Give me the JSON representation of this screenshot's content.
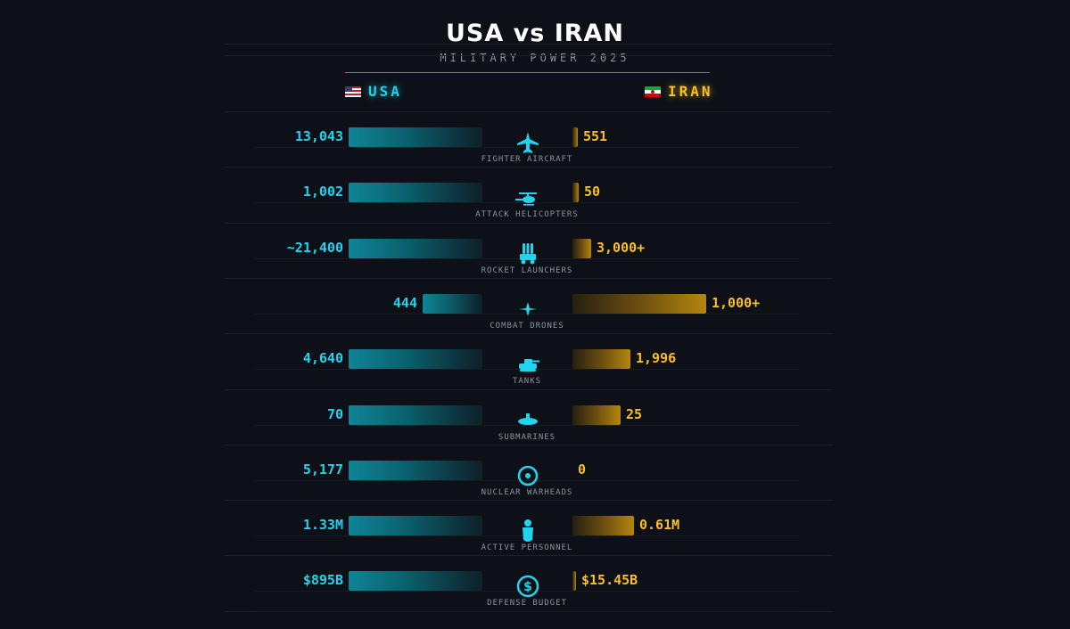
{
  "title": "USA vs IRAN",
  "subtitle": "MILITARY POWER 2025",
  "countries": {
    "usa": {
      "name": "USA",
      "flag": "us-flag-icon",
      "color": "#22d3ee"
    },
    "iran": {
      "name": "IRAN",
      "flag": "iran-flag-icon",
      "color": "#fbbf24"
    }
  },
  "chart_data": {
    "type": "bar",
    "title": "USA vs IRAN",
    "subtitle": "MILITARY POWER 2025",
    "categories": [
      "FIGHTER AIRCRAFT",
      "ATTACK HELICOPTERS",
      "ROCKET LAUNCHERS",
      "COMBAT DRONES",
      "TANKS",
      "SUBMARINES",
      "NUCLEAR WARHEADS",
      "ACTIVE PERSONNEL",
      "DEFENSE BUDGET"
    ],
    "icons": [
      "fighter-jet-icon",
      "helicopter-icon",
      "rocket-launcher-icon",
      "drone-icon",
      "tank-icon",
      "submarine-icon",
      "nuclear-warhead-icon",
      "soldier-icon",
      "dollar-icon"
    ],
    "series": [
      {
        "name": "USA",
        "color": "#22d3ee",
        "labels": [
          "13,043",
          "1,002",
          "~21,400",
          "444",
          "4,640",
          "70",
          "5,177",
          "1.33M",
          "$895B"
        ],
        "values": [
          13043,
          1002,
          21400,
          444,
          4640,
          70,
          5177,
          1330000,
          895
        ]
      },
      {
        "name": "IRAN",
        "color": "#fbbf24",
        "labels": [
          "551",
          "50",
          "3,000+",
          "1,000+",
          "1,996",
          "25",
          "0",
          "0.61M",
          "$15.45B"
        ],
        "values": [
          551,
          50,
          3000,
          1000,
          1996,
          25,
          0,
          610000,
          15.45
        ]
      }
    ]
  }
}
